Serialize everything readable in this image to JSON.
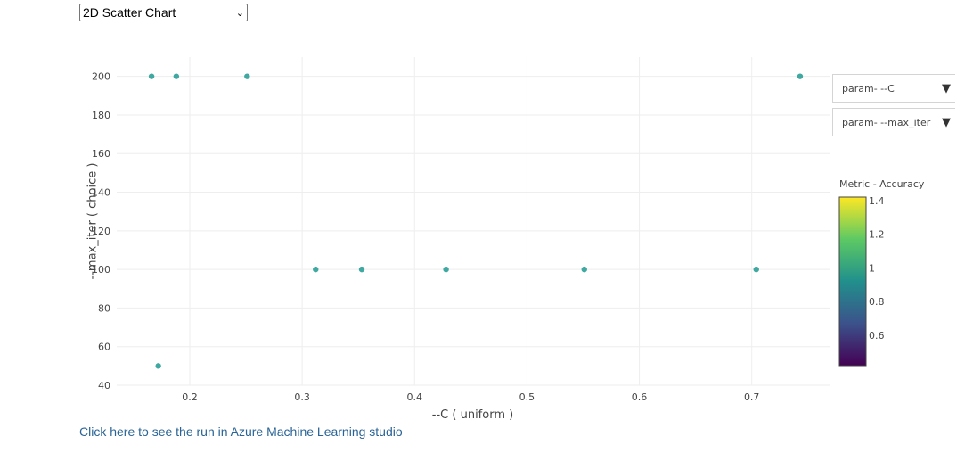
{
  "chart_selector": {
    "value": "2D Scatter Chart"
  },
  "x_axis_selector": {
    "value": "param- --C"
  },
  "y_axis_selector": {
    "value": "param- --max_iter"
  },
  "link": {
    "text": "Click here to see the run in Azure Machine Learning studio"
  },
  "colors": {
    "marker": "#3fa8a0",
    "grid": "#eeeeee",
    "axis_text": "#444444",
    "link": "#2a6496"
  },
  "chart_data": {
    "type": "scatter",
    "title": "",
    "xlabel": "--C ( uniform )",
    "ylabel": "--max_iter ( choice )",
    "xlim": [
      0.135,
      0.77
    ],
    "ylim": [
      40,
      210
    ],
    "xticks": [
      0.2,
      0.3,
      0.4,
      0.5,
      0.6,
      0.7
    ],
    "xtick_labels": [
      "0.2",
      "0.3",
      "0.4",
      "0.5",
      "0.6",
      "0.7"
    ],
    "yticks": [
      40,
      60,
      80,
      100,
      120,
      140,
      160,
      180,
      200
    ],
    "ytick_labels": [
      "40",
      "60",
      "80",
      "100",
      "120",
      "140",
      "160",
      "180",
      "200"
    ],
    "grid": true,
    "points": [
      {
        "x": 0.166,
        "y": 200
      },
      {
        "x": 0.188,
        "y": 200
      },
      {
        "x": 0.251,
        "y": 200
      },
      {
        "x": 0.743,
        "y": 200
      },
      {
        "x": 0.312,
        "y": 100
      },
      {
        "x": 0.353,
        "y": 100
      },
      {
        "x": 0.428,
        "y": 100
      },
      {
        "x": 0.551,
        "y": 100
      },
      {
        "x": 0.704,
        "y": 100
      },
      {
        "x": 0.172,
        "y": 50
      }
    ],
    "colorbar": {
      "title": "Metric - Accuracy",
      "range": [
        0.42,
        1.42
      ],
      "tick_values": [
        0.6,
        0.8,
        1,
        1.2,
        1.4
      ],
      "tick_labels": [
        "0.6",
        "0.8",
        "1",
        "1.2",
        "1.4"
      ],
      "colorscale": [
        "#440154",
        "#3b528b",
        "#21908c",
        "#5dc963",
        "#fde725"
      ],
      "placement": "right"
    }
  }
}
